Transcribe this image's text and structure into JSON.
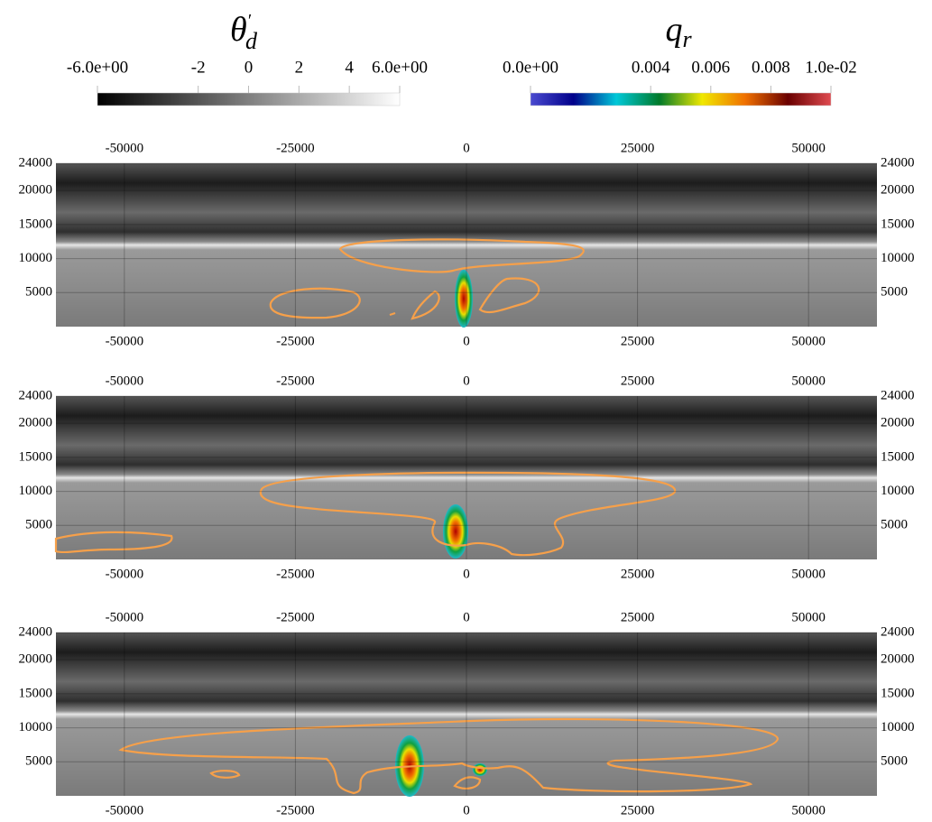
{
  "chart_data": [
    {
      "type": "colorbar",
      "title": {
        "symbol": "θ",
        "prime": "′",
        "subscript": "d"
      },
      "xlim": [
        -6,
        6
      ],
      "xticks": [
        {
          "value": -6,
          "label": "-6.0e+00"
        },
        -2,
        0,
        2,
        4,
        {
          "value": 6,
          "label": "6.0e+00"
        }
      ],
      "colors": [
        "#000000",
        "#ffffff"
      ]
    },
    {
      "type": "colorbar",
      "title": {
        "symbol": "q",
        "subscript": "r"
      },
      "xlim": [
        0,
        0.01
      ],
      "xticks": [
        {
          "value": 0,
          "label": "0.0e+00"
        },
        0.004,
        0.006,
        0.008,
        {
          "value": 0.01,
          "label": "1.0e-02"
        }
      ],
      "colors": [
        "#4a4ad0",
        "#00008a",
        "#00c8d8",
        "#007a2a",
        "#f0e800",
        "#f07000",
        "#6a0000",
        "#e04a50"
      ]
    },
    {
      "type": "field",
      "xlim": [
        -60000,
        60000
      ],
      "ylim": [
        0,
        24000
      ],
      "xticks": [
        -50000,
        -25000,
        0,
        25000,
        50000
      ],
      "yticks": [
        5000,
        10000,
        15000,
        20000,
        24000
      ],
      "grid": true
    },
    {
      "type": "field",
      "xlim": [
        -60000,
        60000
      ],
      "ylim": [
        0,
        24000
      ],
      "xticks": [
        -50000,
        -25000,
        0,
        25000,
        50000
      ],
      "yticks": [
        5000,
        10000,
        15000,
        20000,
        24000
      ],
      "grid": true
    },
    {
      "type": "field",
      "xlim": [
        -60000,
        60000
      ],
      "ylim": [
        0,
        24000
      ],
      "xticks": [
        -50000,
        -25000,
        0,
        25000,
        50000
      ],
      "yticks": [
        5000,
        10000,
        15000,
        20000,
        24000
      ],
      "grid": true
    }
  ]
}
